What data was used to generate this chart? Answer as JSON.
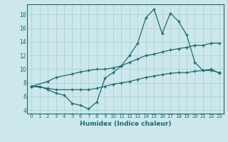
{
  "xlabel": "Humidex (Indice chaleur)",
  "xlim": [
    -0.5,
    23.5
  ],
  "ylim": [
    3.5,
    19.5
  ],
  "yticks": [
    4,
    6,
    8,
    10,
    12,
    14,
    16,
    18
  ],
  "xticks": [
    0,
    1,
    2,
    3,
    4,
    5,
    6,
    7,
    8,
    9,
    10,
    11,
    12,
    13,
    14,
    15,
    16,
    17,
    18,
    19,
    20,
    21,
    22,
    23
  ],
  "bg_color": "#cce8ec",
  "line_color": "#1e6b6b",
  "grid_color": "#b0d4da",
  "line1_x": [
    0,
    1,
    2,
    3,
    4,
    5,
    6,
    7,
    8,
    9,
    10,
    11,
    12,
    13,
    14,
    15,
    16,
    17,
    18,
    19,
    20,
    21,
    22,
    23
  ],
  "line1_y": [
    7.5,
    7.5,
    7.0,
    6.5,
    6.2,
    5.0,
    4.7,
    4.2,
    5.2,
    8.7,
    9.5,
    10.5,
    12.0,
    13.8,
    17.5,
    18.8,
    15.2,
    18.2,
    17.0,
    15.0,
    11.0,
    9.8,
    10.0,
    9.4
  ],
  "line2_x": [
    0,
    2,
    3,
    5,
    6,
    7,
    8,
    9,
    10,
    11,
    12,
    13,
    14,
    15,
    16,
    17,
    18,
    19,
    20,
    21,
    22,
    23
  ],
  "line2_y": [
    7.5,
    8.2,
    8.8,
    9.3,
    9.6,
    9.8,
    10.0,
    10.0,
    10.2,
    10.5,
    11.0,
    11.5,
    12.0,
    12.2,
    12.5,
    12.8,
    13.0,
    13.2,
    13.5,
    13.5,
    13.8,
    13.8
  ],
  "line3_x": [
    0,
    2,
    3,
    5,
    6,
    7,
    8,
    9,
    10,
    11,
    12,
    13,
    14,
    15,
    16,
    17,
    18,
    19,
    20,
    21,
    22,
    23
  ],
  "line3_y": [
    7.5,
    7.2,
    7.0,
    7.0,
    7.0,
    7.0,
    7.2,
    7.5,
    7.8,
    8.0,
    8.2,
    8.5,
    8.8,
    9.0,
    9.2,
    9.4,
    9.5,
    9.5,
    9.7,
    9.8,
    9.8,
    9.5
  ]
}
